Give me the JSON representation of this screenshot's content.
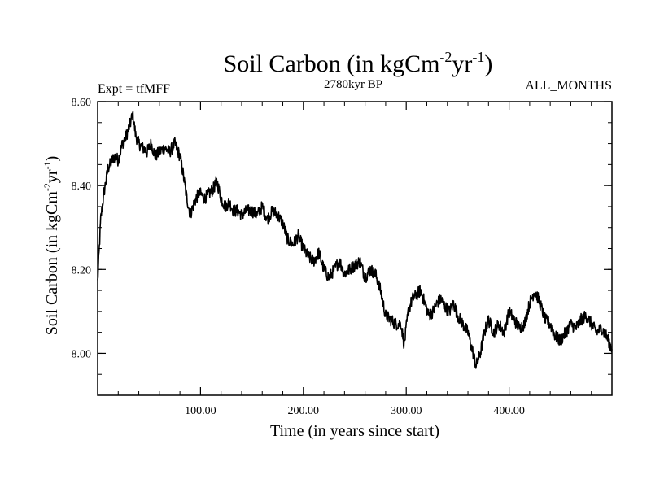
{
  "chart_data": {
    "type": "line",
    "title": {
      "base": "Soil Carbon (in kgCm",
      "sup1": "-2",
      "mid": "yr",
      "sup2": "-1",
      "end": ")"
    },
    "subtitle_left": "Expt = tfMFF",
    "subtitle_center": "2780kyr BP",
    "subtitle_right": "ALL_MONTHS",
    "xlabel": "Time (in years since start)",
    "ylabel": {
      "base": "Soil Carbon (in kgCm",
      "sup1": "-2",
      "mid": "yr",
      "sup2": "-1",
      "end": ")"
    },
    "xlim": [
      0,
      500
    ],
    "ylim": [
      7.9,
      8.6
    ],
    "x_ticks": [
      {
        "value": 100,
        "label": "100.00"
      },
      {
        "value": 200,
        "label": "200.00"
      },
      {
        "value": 300,
        "label": "300.00"
      },
      {
        "value": 400,
        "label": "400.00"
      }
    ],
    "y_ticks": [
      {
        "value": 8.0,
        "label": "8.00"
      },
      {
        "value": 8.2,
        "label": "8.20"
      },
      {
        "value": 8.4,
        "label": "8.40"
      },
      {
        "value": 8.6,
        "label": "8.60"
      }
    ],
    "series": [
      {
        "name": "Soil Carbon",
        "x": [
          0,
          3,
          6,
          10,
          14,
          17,
          20,
          24,
          28,
          32,
          34,
          37,
          40,
          44,
          48,
          52,
          56,
          60,
          65,
          70,
          75,
          80,
          83,
          86,
          90,
          94,
          98,
          100,
          104,
          108,
          112,
          116,
          120,
          124,
          128,
          132,
          136,
          140,
          145,
          150,
          155,
          160,
          165,
          170,
          175,
          180,
          185,
          190,
          195,
          200,
          205,
          210,
          215,
          220,
          225,
          230,
          235,
          240,
          245,
          250,
          255,
          260,
          265,
          270,
          275,
          280,
          285,
          290,
          295,
          298,
          302,
          306,
          310,
          314,
          318,
          322,
          326,
          330,
          334,
          338,
          342,
          346,
          350,
          355,
          360,
          365,
          368,
          372,
          376,
          380,
          385,
          390,
          395,
          400,
          405,
          410,
          415,
          420,
          425,
          430,
          435,
          440,
          445,
          450,
          455,
          460,
          465,
          470,
          475,
          480,
          485,
          490,
          495,
          500
        ],
        "y": [
          8.17,
          8.32,
          8.38,
          8.44,
          8.46,
          8.47,
          8.46,
          8.5,
          8.52,
          8.55,
          8.57,
          8.52,
          8.5,
          8.49,
          8.48,
          8.5,
          8.47,
          8.48,
          8.49,
          8.48,
          8.5,
          8.47,
          8.43,
          8.38,
          8.33,
          8.36,
          8.38,
          8.38,
          8.37,
          8.38,
          8.39,
          8.41,
          8.37,
          8.35,
          8.36,
          8.34,
          8.34,
          8.33,
          8.34,
          8.34,
          8.33,
          8.35,
          8.32,
          8.34,
          8.33,
          8.31,
          8.27,
          8.26,
          8.28,
          8.25,
          8.23,
          8.22,
          8.24,
          8.2,
          8.18,
          8.2,
          8.22,
          8.19,
          8.2,
          8.21,
          8.22,
          8.18,
          8.2,
          8.19,
          8.15,
          8.09,
          8.08,
          8.07,
          8.07,
          8.02,
          8.1,
          8.13,
          8.14,
          8.15,
          8.12,
          8.09,
          8.1,
          8.12,
          8.13,
          8.11,
          8.1,
          8.12,
          8.09,
          8.07,
          8.05,
          8.0,
          7.97,
          8.0,
          8.05,
          8.08,
          8.05,
          8.07,
          8.05,
          8.1,
          8.08,
          8.06,
          8.07,
          8.12,
          8.15,
          8.12,
          8.08,
          8.07,
          8.04,
          8.03,
          8.05,
          8.07,
          8.06,
          8.08,
          8.09,
          8.07,
          8.05,
          8.06,
          8.04,
          8.01
        ]
      }
    ]
  }
}
